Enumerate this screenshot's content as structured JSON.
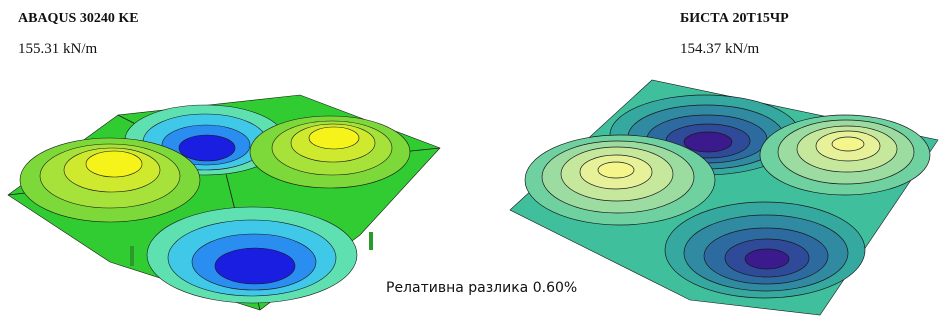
{
  "left_panel": {
    "title": "ABAQUS 30240 KE",
    "value": "155.31 kN/m"
  },
  "right_panel": {
    "title": "БИСТА 20T15ЧР",
    "value": "154.37 kN/m"
  },
  "comparison": {
    "label": "Релативна разлика  0.60%"
  },
  "colors": {
    "left_base": "#2fcd2f",
    "left_peak": "#f2f018",
    "left_trough": "#1a1ee0",
    "right_base": "#3fbf9c",
    "right_peak": "#f4f58a",
    "right_trough": "#3a1a8c",
    "contour_line": "#1a1a1a"
  }
}
